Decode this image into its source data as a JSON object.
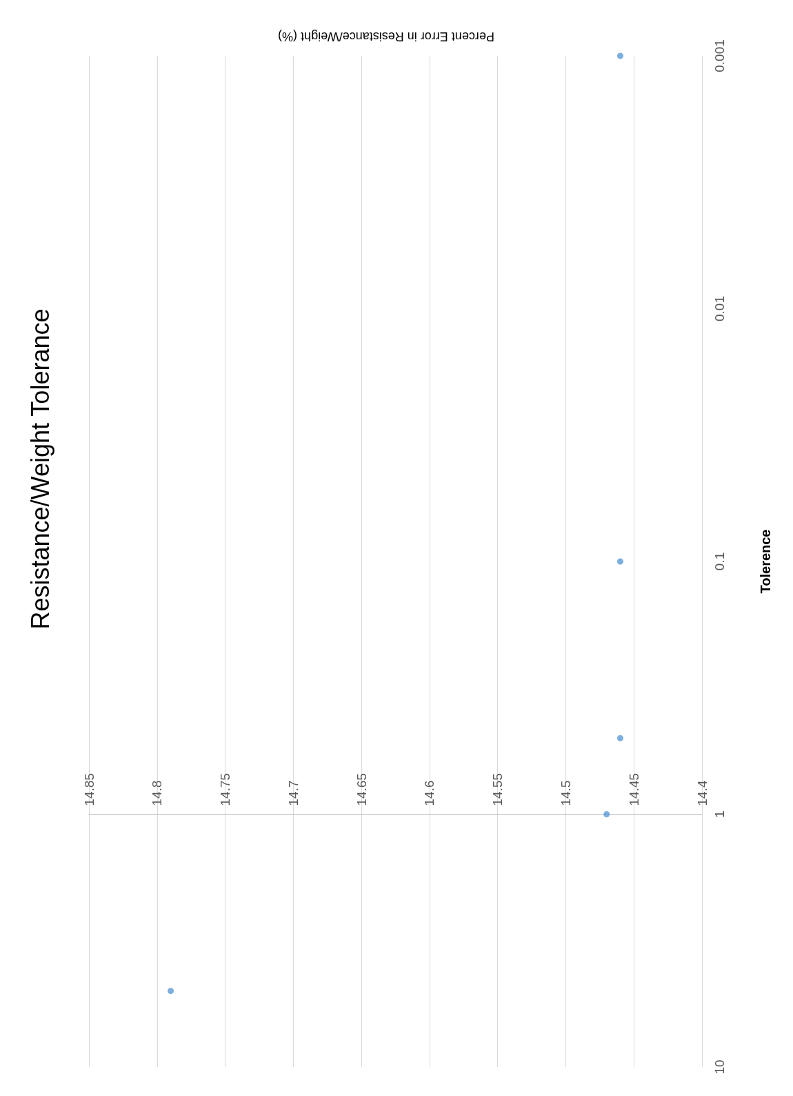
{
  "chart_data": {
    "type": "scatter",
    "title": "Resistance/Weight Tolerance",
    "xlabel": "Percent Error in Resistance/Weight (%)",
    "ylabel": "Tolerence",
    "x": [
      14.79,
      14.47,
      14.46,
      14.46,
      14.46
    ],
    "values": [
      5,
      1,
      0.5,
      0.1,
      0.001
    ],
    "color": "#5b9bd5",
    "marker": "circle",
    "log": "y",
    "xlim": [
      14.85,
      14.4
    ],
    "xticks": [
      14.85,
      14.8,
      14.75,
      14.7,
      14.65,
      14.6,
      14.55,
      14.5,
      14.45,
      14.4
    ],
    "ylim": [
      10,
      0.001
    ],
    "yticks": [
      10,
      1,
      0.1,
      0.01,
      0.001
    ],
    "grid": "x"
  }
}
